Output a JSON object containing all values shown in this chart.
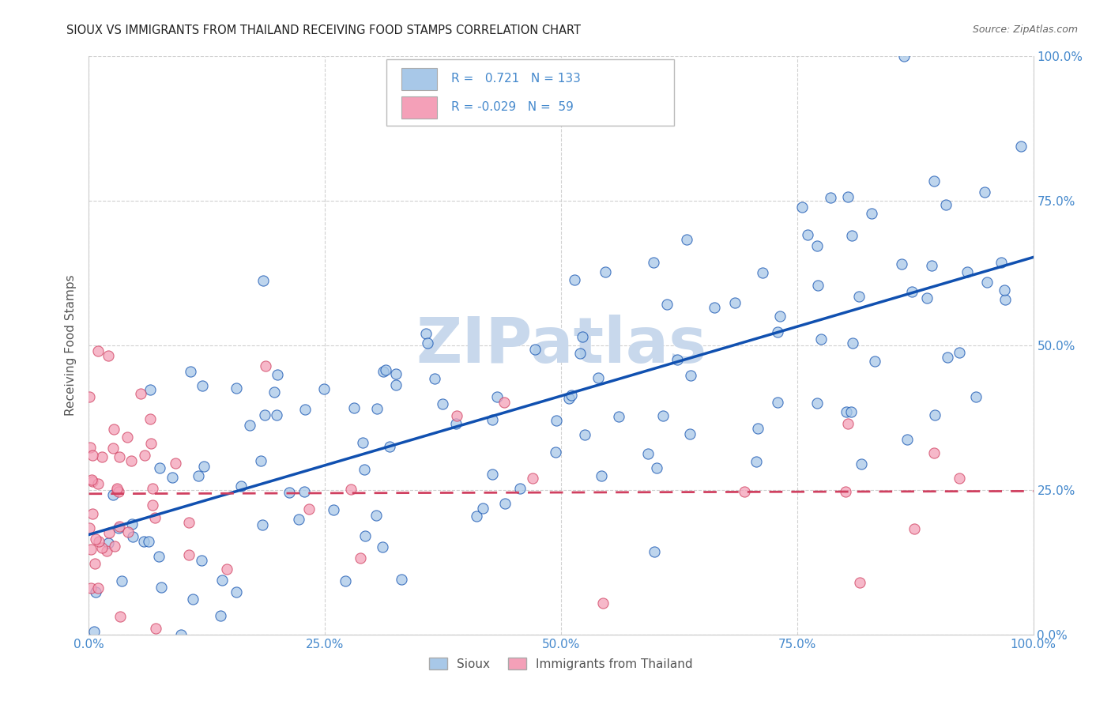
{
  "title": "SIOUX VS IMMIGRANTS FROM THAILAND RECEIVING FOOD STAMPS CORRELATION CHART",
  "source": "Source: ZipAtlas.com",
  "ylabel": "Receiving Food Stamps",
  "watermark": "ZIPatlas",
  "legend_label1": "Sioux",
  "legend_label2": "Immigrants from Thailand",
  "r1": 0.721,
  "n1": 133,
  "r2": -0.029,
  "n2": 59,
  "color_blue": "#A8C8E8",
  "color_pink": "#F4A0B8",
  "color_blue_line": "#1050B0",
  "color_pink_line": "#D04060",
  "background": "#FFFFFF",
  "grid_color": "#CCCCCC",
  "title_color": "#222222",
  "axis_label_color": "#555555",
  "tick_color": "#4488CC",
  "watermark_color": "#C8D8EC"
}
